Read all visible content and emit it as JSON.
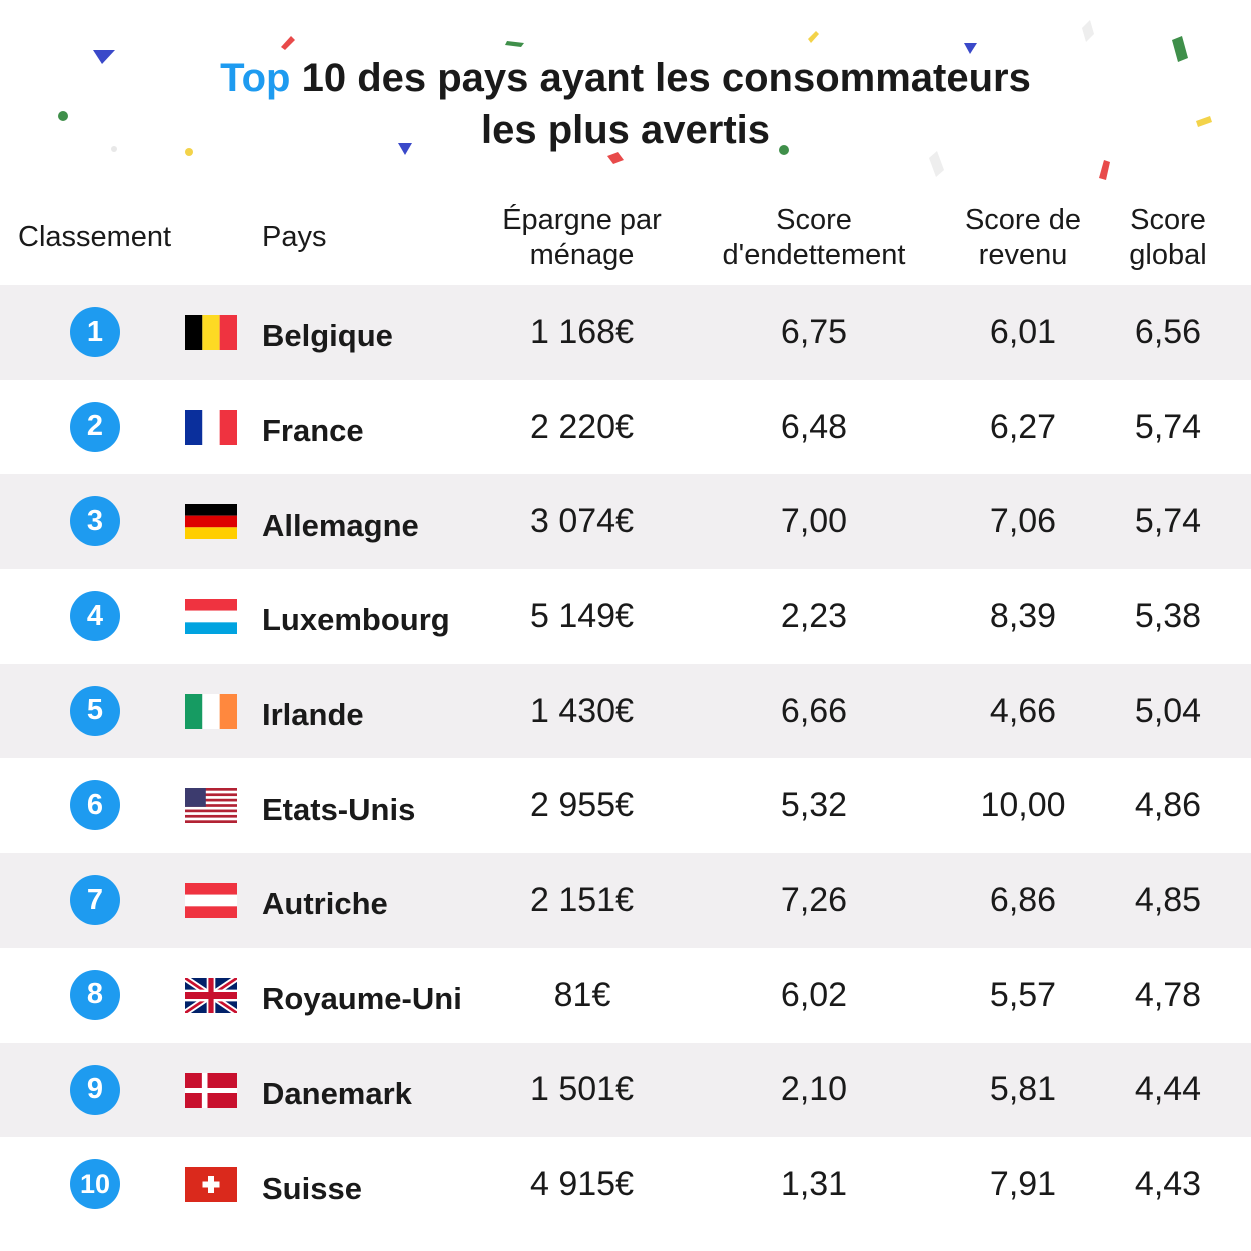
{
  "title": {
    "accent": "Top",
    "line1_rest": " 10 des pays ayant les consommateurs",
    "line2": "les plus avertis"
  },
  "columns": {
    "rank": "Classement",
    "country": "Pays",
    "epargne": [
      "Épargne par",
      "ménage"
    ],
    "endettement": [
      "Score",
      "d'endettement"
    ],
    "revenu": [
      "Score de",
      "revenu"
    ],
    "global": [
      "Score",
      "global"
    ]
  },
  "rows": [
    {
      "rank": "1",
      "flag": "belgium-flag-icon",
      "country": "Belgique",
      "epargne": "1 168€",
      "endettement": "6,75",
      "revenu": "6,01",
      "global": "6,56"
    },
    {
      "rank": "2",
      "flag": "france-flag-icon",
      "country": "France",
      "epargne": "2 220€",
      "endettement": "6,48",
      "revenu": "6,27",
      "global": "5,74"
    },
    {
      "rank": "3",
      "flag": "germany-flag-icon",
      "country": "Allemagne",
      "epargne": "3 074€",
      "endettement": "7,00",
      "revenu": "7,06",
      "global": "5,74"
    },
    {
      "rank": "4",
      "flag": "luxembourg-flag-icon",
      "country": "Luxembourg",
      "epargne": "5 149€",
      "endettement": "2,23",
      "revenu": "8,39",
      "global": "5,38"
    },
    {
      "rank": "5",
      "flag": "ireland-flag-icon",
      "country": "Irlande",
      "epargne": "1 430€",
      "endettement": "6,66",
      "revenu": "4,66",
      "global": "5,04"
    },
    {
      "rank": "6",
      "flag": "usa-flag-icon",
      "country": "Etats-Unis",
      "epargne": "2 955€",
      "endettement": "5,32",
      "revenu": "10,00",
      "global": "4,86"
    },
    {
      "rank": "7",
      "flag": "austria-flag-icon",
      "country": "Autriche",
      "epargne": "2 151€",
      "endettement": "7,26",
      "revenu": "6,86",
      "global": "4,85"
    },
    {
      "rank": "8",
      "flag": "uk-flag-icon",
      "country": "Royaume-Uni",
      "epargne": "81€",
      "endettement": "6,02",
      "revenu": "5,57",
      "global": "4,78"
    },
    {
      "rank": "9",
      "flag": "denmark-flag-icon",
      "country": "Danemark",
      "epargne": "1 501€",
      "endettement": "2,10",
      "revenu": "5,81",
      "global": "4,44"
    },
    {
      "rank": "10",
      "flag": "switzerland-flag-icon",
      "country": "Suisse",
      "epargne": "4 915€",
      "endettement": "1,31",
      "revenu": "7,91",
      "global": "4,43"
    }
  ],
  "colors": {
    "accent": "#1e9bf0",
    "row_shade": "#f1eff1"
  }
}
